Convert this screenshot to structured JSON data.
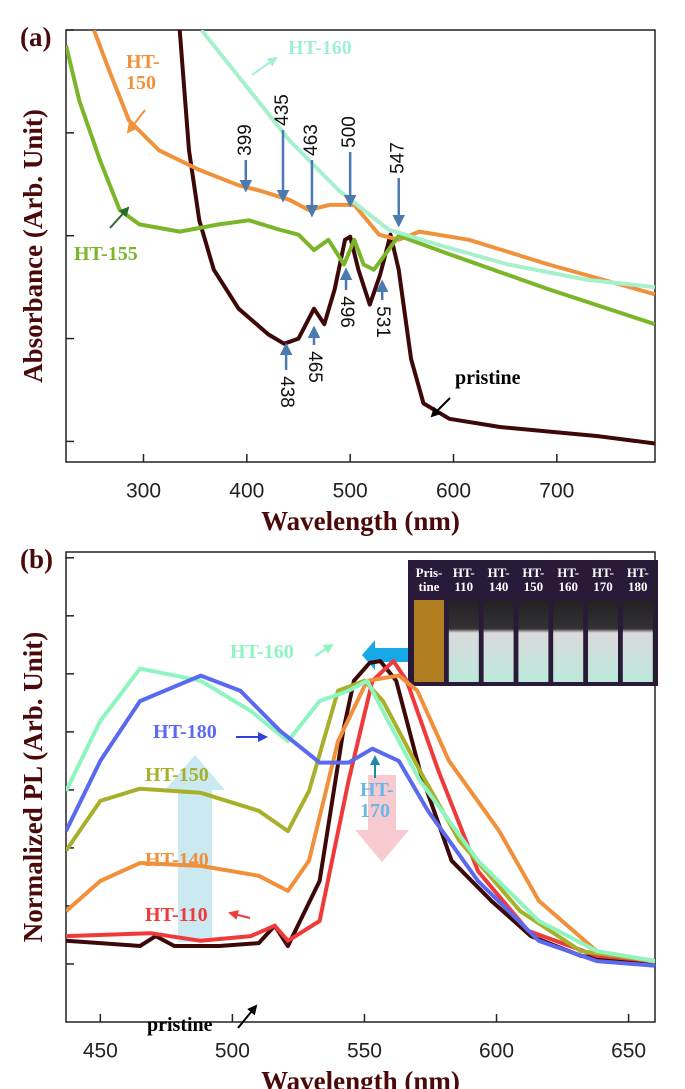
{
  "chart_data": [
    {
      "type": "line",
      "panel_label": "(a)",
      "xlabel": "Wavelength (nm)",
      "ylabel": "Absorbance (Arb. Unit)",
      "xlim": [
        225,
        795
      ],
      "xticks": [
        300,
        400,
        500,
        600,
        700
      ],
      "ylim": [
        -0.2,
        4.0
      ],
      "yticks": [
        0,
        1,
        2,
        3,
        4
      ],
      "peaks_up": [
        399,
        435,
        463,
        500,
        547
      ],
      "peaks_down": [
        438,
        465,
        496,
        531
      ],
      "series": [
        {
          "name": "pristine",
          "color": "#3d0808",
          "x": [
            335,
            344,
            354,
            368,
            392,
            421,
            436,
            450,
            465,
            475,
            485,
            495,
            500,
            508,
            519,
            529,
            539,
            547,
            559,
            571,
            596,
            645,
            741,
            795
          ],
          "values": [
            4.0,
            2.83,
            2.15,
            1.67,
            1.29,
            1.04,
            0.95,
            1.0,
            1.29,
            1.14,
            1.48,
            1.96,
            1.99,
            1.67,
            1.33,
            1.62,
            2.01,
            1.67,
            0.8,
            0.37,
            0.22,
            0.14,
            0.05,
            -0.02
          ]
        },
        {
          "name": "HT-150",
          "color": "#f0923c",
          "x": [
            252,
            267,
            286,
            315,
            354,
            392,
            412,
            441,
            460,
            480,
            504,
            528,
            547,
            567,
            615,
            692,
            795
          ],
          "values": [
            4.0,
            3.6,
            3.12,
            2.83,
            2.64,
            2.49,
            2.44,
            2.35,
            2.25,
            2.3,
            2.3,
            2.01,
            1.96,
            2.04,
            1.96,
            1.72,
            1.43
          ]
        },
        {
          "name": "HT-155",
          "color": "#7ab52a",
          "x": [
            225,
            238,
            258,
            277,
            296,
            335,
            373,
            402,
            431,
            450,
            465,
            479,
            494,
            504,
            513,
            523,
            537,
            547,
            596,
            692,
            795
          ],
          "values": [
            3.85,
            3.31,
            2.73,
            2.25,
            2.11,
            2.04,
            2.11,
            2.15,
            2.06,
            2.01,
            1.86,
            1.96,
            1.72,
            1.96,
            1.72,
            1.67,
            1.86,
            2.0,
            1.82,
            1.48,
            1.14
          ]
        },
        {
          "name": "HT-160",
          "color": "#a6f0cc",
          "x": [
            356,
            395,
            441,
            489,
            537,
            586,
            653,
            730,
            795
          ],
          "values": [
            4.0,
            3.51,
            2.93,
            2.44,
            2.06,
            1.91,
            1.72,
            1.57,
            1.5
          ]
        }
      ]
    },
    {
      "type": "line",
      "panel_label": "(b)",
      "xlabel": "Wavelength (nm)",
      "ylabel": "Normalized PL (Arb. Unit)",
      "xlim": [
        437,
        660
      ],
      "xticks": [
        450,
        500,
        550,
        600,
        650
      ],
      "ylim": [
        -1.0,
        7.1
      ],
      "yticks": [
        0,
        1,
        2,
        3,
        4,
        5,
        6,
        7
      ],
      "annotation": "HT-170",
      "annotation_color": "#6ab8e8",
      "inset_labels": [
        "Pris-tine",
        "HT-110",
        "HT-140",
        "HT-150",
        "HT-160",
        "HT-170",
        "HT-180"
      ],
      "series": [
        {
          "name": "pristine",
          "color": "#3d0808",
          "x": [
            437,
            450,
            465,
            471,
            478,
            495,
            510,
            516,
            521,
            533,
            542,
            546,
            552,
            556,
            562,
            571,
            583,
            598,
            613,
            632,
            660
          ],
          "values": [
            0.4,
            0.36,
            0.31,
            0.48,
            0.31,
            0.31,
            0.36,
            0.66,
            0.31,
            1.43,
            4.02,
            4.88,
            5.19,
            5.22,
            4.88,
            3.33,
            1.78,
            1.09,
            0.48,
            0.14,
            -0.03
          ]
        },
        {
          "name": "HT-110",
          "color": "#f03a3a",
          "x": [
            437,
            469,
            488,
            507,
            516,
            521,
            533,
            544,
            553,
            561,
            566,
            578,
            593,
            612,
            638,
            660
          ],
          "values": [
            0.48,
            0.53,
            0.4,
            0.48,
            0.66,
            0.4,
            0.74,
            3.16,
            4.88,
            5.22,
            4.88,
            3.33,
            1.6,
            0.57,
            0.14,
            0.05
          ]
        },
        {
          "name": "HT-140",
          "color": "#f0903a",
          "x": [
            437,
            450,
            465,
            488,
            510,
            521,
            529,
            540,
            551,
            563,
            570,
            582,
            601,
            616,
            638,
            660
          ],
          "values": [
            0.91,
            1.43,
            1.74,
            1.69,
            1.52,
            1.26,
            1.78,
            3.84,
            4.88,
            4.97,
            4.71,
            3.5,
            2.29,
            1.09,
            0.22,
            0.05
          ]
        },
        {
          "name": "HT-150",
          "color": "#a8b02a",
          "x": [
            437,
            450,
            465,
            488,
            510,
            521,
            529,
            540,
            550,
            557,
            571,
            586,
            609,
            632,
            660
          ],
          "values": [
            1.95,
            2.81,
            3.02,
            2.95,
            2.64,
            2.29,
            2.98,
            4.71,
            4.88,
            4.53,
            3.33,
            2.12,
            0.91,
            0.22,
            0.05
          ]
        },
        {
          "name": "HT-160",
          "color": "#8ef5c0",
          "x": [
            437,
            450,
            465,
            488,
            507,
            521,
            533,
            544,
            551,
            559,
            571,
            593,
            616,
            638,
            660
          ],
          "values": [
            2.98,
            4.19,
            5.09,
            4.88,
            4.36,
            3.84,
            4.53,
            4.71,
            4.88,
            4.19,
            3.16,
            1.78,
            0.74,
            0.22,
            0.05
          ]
        },
        {
          "name": "HT-180",
          "color": "#5a6aee",
          "x": [
            437,
            450,
            465,
            488,
            503,
            518,
            533,
            544,
            553,
            563,
            574,
            593,
            616,
            638,
            660
          ],
          "values": [
            2.29,
            3.5,
            4.53,
            4.97,
            4.71,
            4.02,
            3.47,
            3.47,
            3.71,
            3.5,
            2.64,
            1.43,
            0.4,
            0.05,
            -0.03
          ]
        }
      ]
    }
  ]
}
